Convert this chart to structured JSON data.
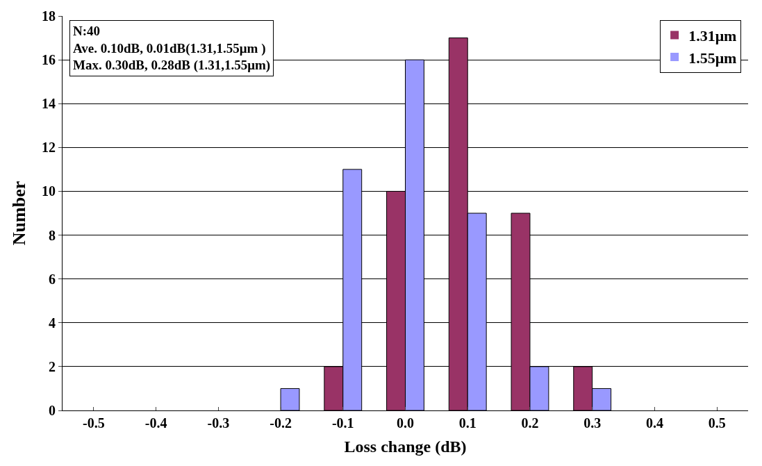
{
  "chart_data": {
    "type": "bar",
    "xlabel": "Loss change (dB)",
    "ylabel": "Number",
    "categories": [
      "-0.5",
      "-0.4",
      "-0.3",
      "-0.2",
      "-0.1",
      "0.0",
      "0.1",
      "0.2",
      "0.3",
      "0.4",
      "0.5"
    ],
    "series": [
      {
        "name": "1.31μm",
        "color": "#993366",
        "values": [
          0,
          0,
          0,
          0,
          2,
          10,
          17,
          9,
          2,
          0,
          0
        ]
      },
      {
        "name": "1.55μm",
        "color": "#9999ff",
        "values": [
          0,
          0,
          0,
          1,
          11,
          16,
          9,
          2,
          1,
          0,
          0
        ]
      }
    ],
    "ylim": [
      0,
      18
    ],
    "yticks": [
      0,
      2,
      4,
      6,
      8,
      10,
      12,
      14,
      16,
      18
    ],
    "grid": "y",
    "legend": "top right",
    "annotations": [
      "N:40",
      "Ave. 0.10dB, 0.01dB(1.31,1.55μm )",
      "Max. 0.30dB, 0.28dB (1.31,1.55μm)"
    ]
  }
}
